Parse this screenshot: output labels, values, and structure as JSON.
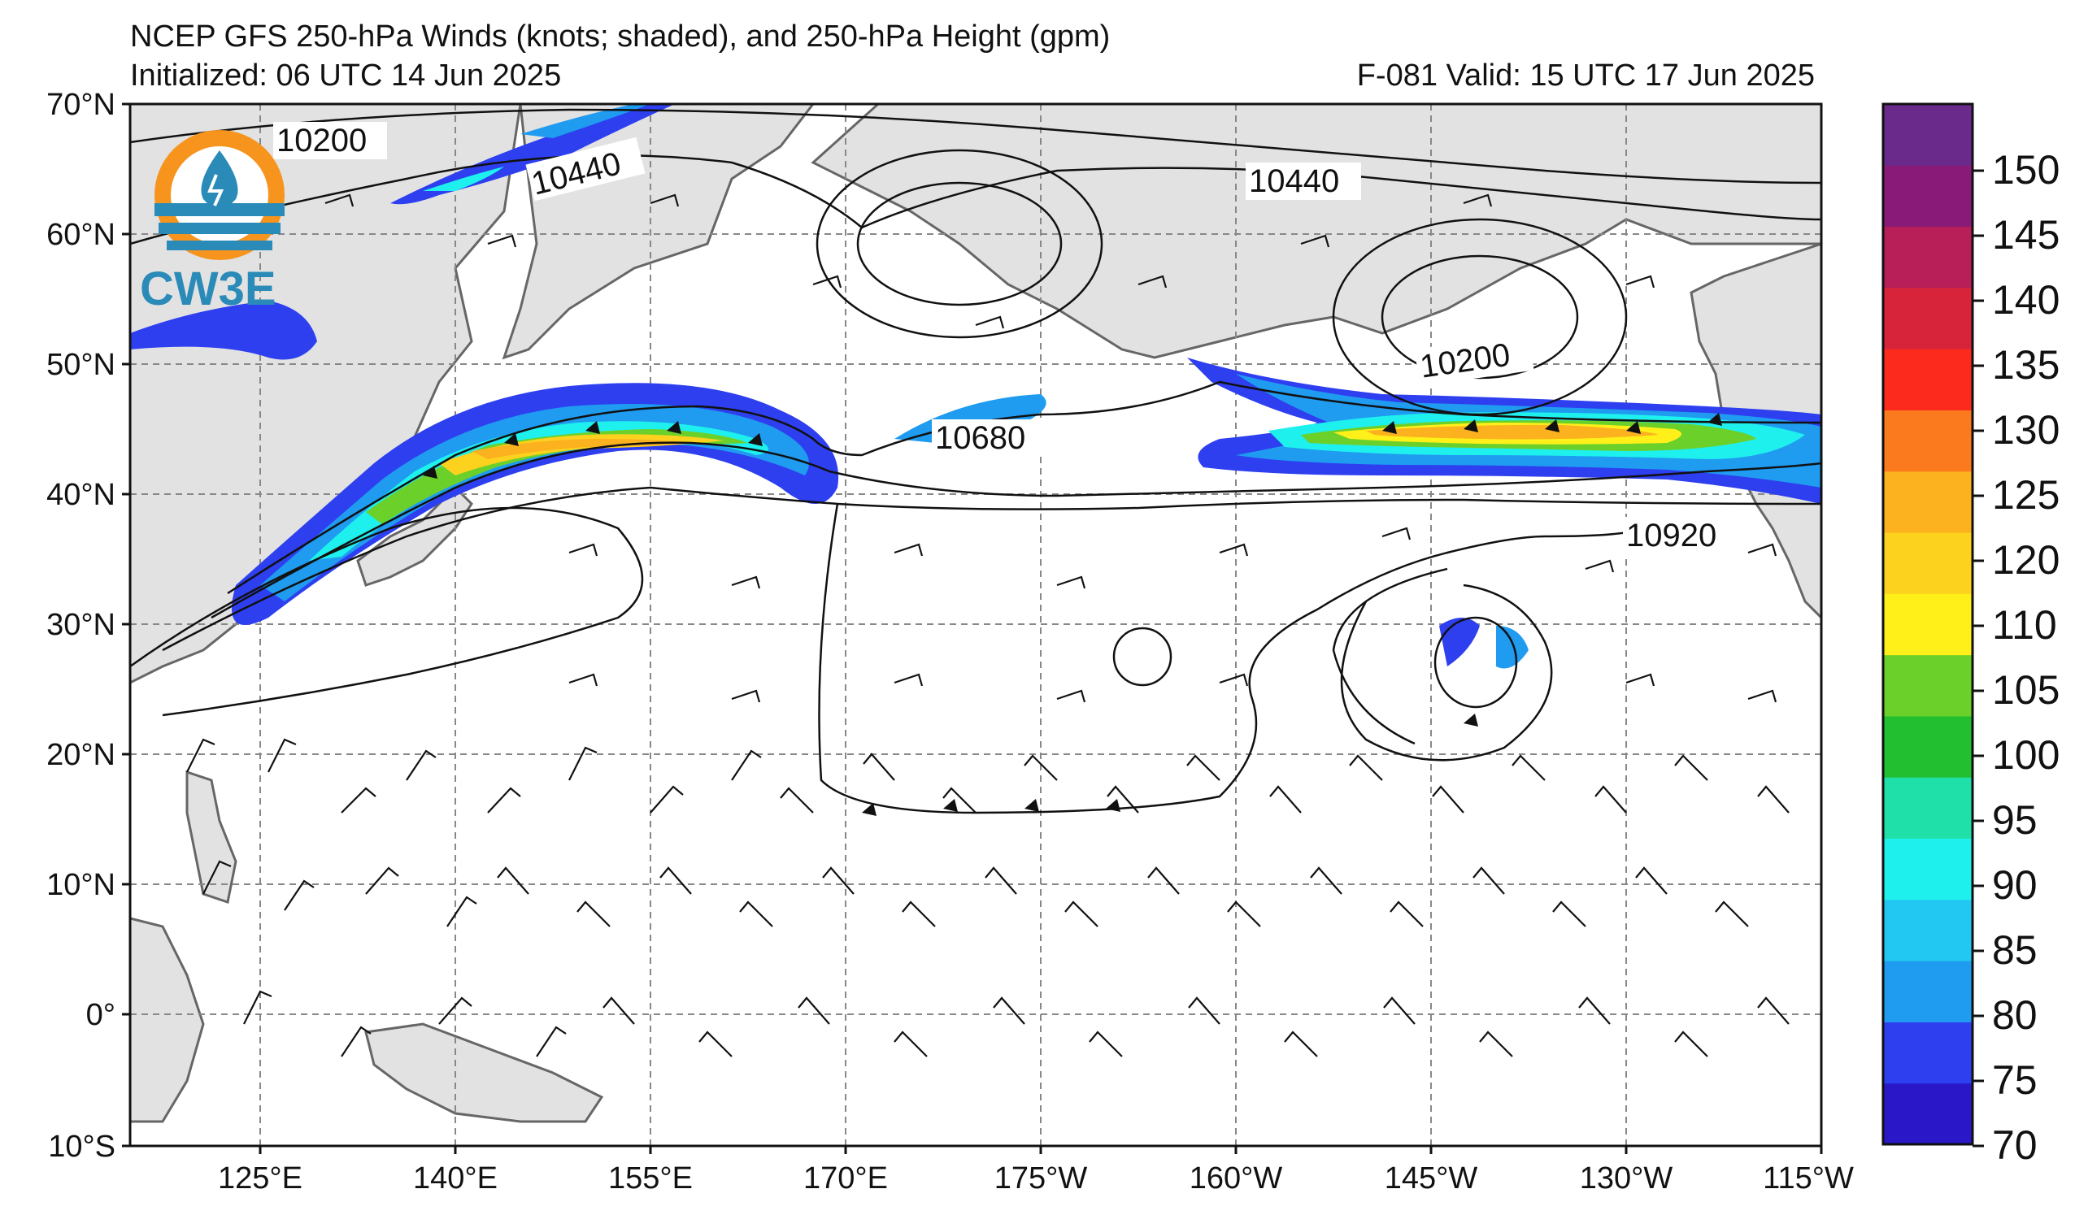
{
  "header": {
    "title": "NCEP GFS 250-hPa Winds (knots; shaded), and 250-hPa Height (gpm)",
    "initialized": "Initialized: 06 UTC 14 Jun 2025",
    "valid": "F-081  Valid: 15 UTC 17 Jun 2025"
  },
  "logo": {
    "text": "CW3E",
    "icon": "water-drop-circle-icon"
  },
  "axes": {
    "lat_labels": [
      "70°N",
      "60°N",
      "50°N",
      "40°N",
      "30°N",
      "20°N",
      "10°N",
      "0°",
      "10°S"
    ],
    "lon_labels": [
      "125°E",
      "140°E",
      "155°E",
      "170°E",
      "175°W",
      "160°W",
      "145°W",
      "130°W",
      "115°W"
    ]
  },
  "colorbar": {
    "labels": [
      "70",
      "75",
      "80",
      "85",
      "90",
      "95",
      "100",
      "105",
      "110",
      "120",
      "125",
      "130",
      "135",
      "140",
      "145",
      "150"
    ],
    "colors": [
      "#2a18c8",
      "#2e3ff0",
      "#1f9bf0",
      "#22c8f2",
      "#1ef0ee",
      "#1ee0a8",
      "#22c030",
      "#6cd02a",
      "#fff01a",
      "#fcd21f",
      "#fcb11f",
      "#fc7a1e",
      "#fc2a1c",
      "#d8243a",
      "#b81f58",
      "#8a1a78",
      "#6a2a8c"
    ]
  },
  "contour_labels": [
    "10200",
    "10440",
    "10440",
    "10200",
    "10680",
    "10920"
  ],
  "map_colors": {
    "land": "#e2e2e2",
    "ocean": "#ffffff",
    "grid": "#888888",
    "coast": "#666666"
  }
}
